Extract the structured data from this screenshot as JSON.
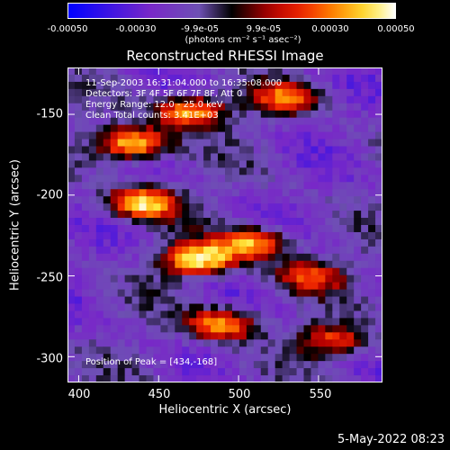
{
  "colorbar": {
    "ticks": [
      "-0.00050",
      "-0.00030",
      "-9.9e-05",
      "9.9e-05",
      "0.00030",
      "0.00050"
    ],
    "tick_values": [
      -0.0005,
      -0.0003,
      -9.9e-05,
      9.9e-05,
      0.0003,
      0.0005
    ],
    "units": "(photons cm⁻² s⁻¹ asec⁻²)"
  },
  "header": {
    "title": "Reconstructed RHESSI Image"
  },
  "info": {
    "line1": "11-Sep-2003 16:31:04.000 to 16:35:08.000",
    "line2": "Detectors: 3F 4F 5F 6F 7F 8F, Att 0",
    "line3": "Energy Range: 12.0 - 25.0 keV",
    "line4": "Clean     Total counts: 3.41E+03"
  },
  "peak_text": "Position of Peak = [434,-168]",
  "datestamp": "5-May-2022 08:23",
  "chart_data": {
    "type": "heatmap",
    "title": "Reconstructed RHESSI Image",
    "xlabel": "Heliocentric X (arcsec)",
    "ylabel": "Heliocentric Y (arcsec)",
    "xlim": [
      393,
      590
    ],
    "ylim": [
      -316,
      -121
    ],
    "xticks": [
      400,
      450,
      500,
      550
    ],
    "yticks": [
      -150,
      -200,
      -250,
      -300
    ],
    "zlim": [
      -0.0005,
      0.0005
    ],
    "peak": [
      434,
      -168
    ],
    "bright_regions": [
      {
        "x": 434,
        "y": -168,
        "level": 1.0
      },
      {
        "x": 470,
        "y": -148,
        "level": 0.85
      },
      {
        "x": 530,
        "y": -140,
        "level": 0.6
      },
      {
        "x": 440,
        "y": -205,
        "level": 0.9
      },
      {
        "x": 475,
        "y": -240,
        "level": 0.95
      },
      {
        "x": 510,
        "y": -230,
        "level": 0.8
      },
      {
        "x": 545,
        "y": -250,
        "level": 0.55
      },
      {
        "x": 490,
        "y": -280,
        "level": 0.8
      },
      {
        "x": 560,
        "y": -290,
        "level": 0.6
      }
    ]
  }
}
